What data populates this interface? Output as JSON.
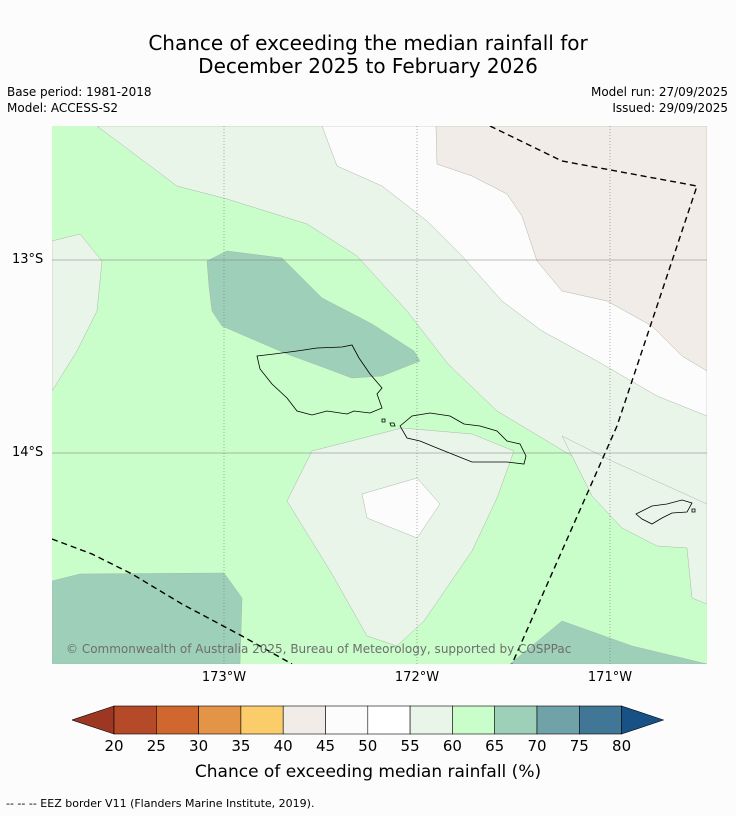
{
  "title_line1": "Chance of exceeding the median rainfall for",
  "title_line2": "December 2025 to February 2026",
  "base_period": "Base period: 1981-2018",
  "model": "Model: ACCESS-S2",
  "model_run": "Model run: 27/09/2025",
  "issued": "Issued: 29/09/2025",
  "lat_labels": [
    "13°S",
    "14°S"
  ],
  "lon_labels": [
    "173°W",
    "172°W",
    "171°W"
  ],
  "copyright": "© Commonwealth of Australia 2025, Bureau of Meteorology, supported by COSPPac",
  "colorbar": {
    "ticks": [
      "20",
      "25",
      "30",
      "35",
      "40",
      "45",
      "50",
      "55",
      "60",
      "65",
      "70",
      "75",
      "80"
    ],
    "colors": [
      "#9b3723",
      "#b44a28",
      "#d0672f",
      "#e39446",
      "#fbcd6a",
      "#f1ece7",
      "#fbfcfb",
      "#ffffff",
      "#eaf5ea",
      "#c9fdc9",
      "#9ecfb9",
      "#6fa3a7",
      "#417796",
      "#175185"
    ],
    "title": "Chance of exceeding median rainfall (%)"
  },
  "legend_note": "--  --  -- EEZ border V11 (Flanders Marine Institute, 2019)."
}
